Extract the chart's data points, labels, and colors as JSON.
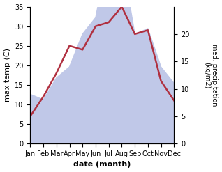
{
  "months": [
    "Jan",
    "Feb",
    "Mar",
    "Apr",
    "May",
    "Jun",
    "Jul",
    "Aug",
    "Sep",
    "Oct",
    "Nov",
    "Dec"
  ],
  "temperature": [
    7,
    12,
    18,
    25,
    24,
    30,
    31,
    35,
    28,
    29,
    16,
    11
  ],
  "precipitation": [
    9,
    8,
    12,
    14,
    20,
    23,
    35,
    34,
    20,
    21,
    14,
    11
  ],
  "temp_color": "#b03040",
  "precip_fill_color": "#c0c8e8",
  "xlabel": "date (month)",
  "ylabel_left": "max temp (C)",
  "ylabel_right": "med. precipitation\n(kg/m2)",
  "ylim_left": [
    0,
    35
  ],
  "ylim_right": [
    0,
    25
  ],
  "yticks_left": [
    0,
    5,
    10,
    15,
    20,
    25,
    30,
    35
  ],
  "yticks_right": [
    0,
    5,
    10,
    15,
    20
  ],
  "background_color": "#ffffff"
}
